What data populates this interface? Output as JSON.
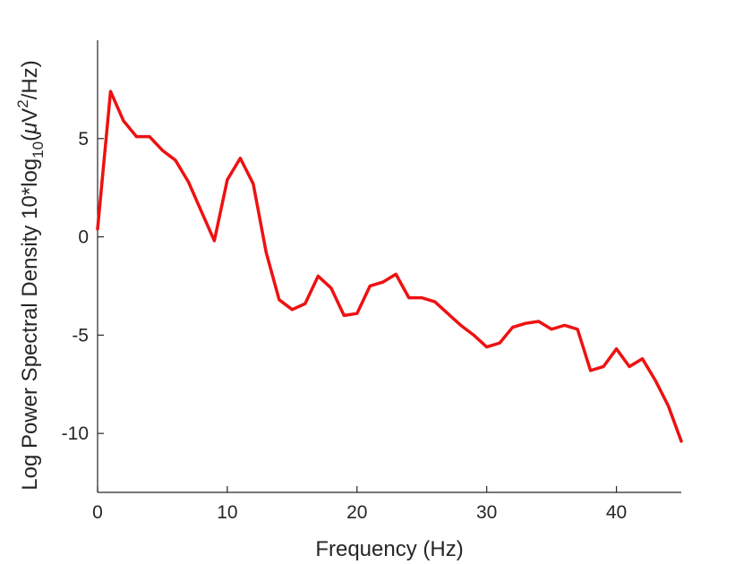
{
  "chart_data": {
    "type": "line",
    "title": "",
    "xlabel": "Frequency (Hz)",
    "ylabel": {
      "prefix": "Log Power Spectral Density 10*log",
      "subscript": "10",
      "open": "(",
      "mu": "μ",
      "unit_v": "V",
      "superscript": "2",
      "suffix": "/Hz)"
    },
    "xlim": [
      0,
      45
    ],
    "ylim": [
      -13,
      10
    ],
    "xticks": [
      0,
      10,
      20,
      30,
      40
    ],
    "xtick_labels": [
      "0",
      "10",
      "20",
      "30",
      "40"
    ],
    "yticks": [
      5,
      0,
      -5,
      -10
    ],
    "ytick_labels": [
      "5",
      "0",
      "-5",
      "-10"
    ],
    "grid": false,
    "line_color": "#ee1111",
    "x": [
      0,
      1,
      2,
      3,
      4,
      5,
      6,
      7,
      8,
      9,
      10,
      11,
      12,
      13,
      14,
      15,
      16,
      17,
      18,
      19,
      20,
      21,
      22,
      23,
      24,
      25,
      26,
      27,
      28,
      29,
      30,
      31,
      32,
      33,
      34,
      35,
      36,
      37,
      38,
      39,
      40,
      41,
      42,
      43,
      44,
      45
    ],
    "values": [
      0.4,
      7.4,
      5.9,
      5.1,
      5.1,
      4.4,
      3.9,
      2.8,
      1.3,
      -0.2,
      2.9,
      4.0,
      2.7,
      -0.8,
      -3.2,
      -3.7,
      -3.4,
      -2.0,
      -2.6,
      -4.0,
      -3.9,
      -2.5,
      -2.3,
      -1.9,
      -3.1,
      -3.1,
      -3.3,
      -3.9,
      -4.5,
      -5.0,
      -5.6,
      -5.4,
      -4.6,
      -4.4,
      -4.3,
      -4.7,
      -4.5,
      -4.7,
      -6.8,
      -6.6,
      -5.7,
      -6.6,
      -6.2,
      -7.3,
      -8.6,
      -10.4
    ]
  }
}
